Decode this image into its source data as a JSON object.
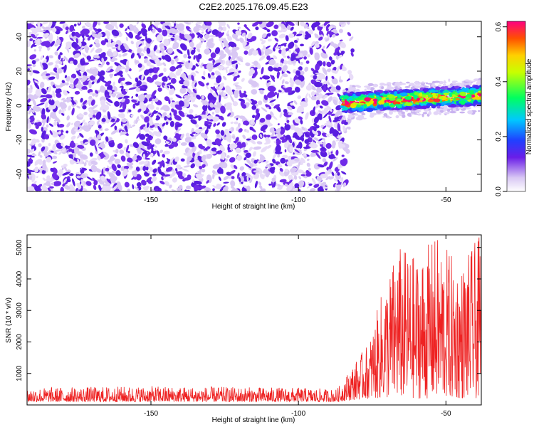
{
  "figure_title": "C2E2.2025.176.09.45.E23",
  "colors": {
    "snr_line": "#ee2222",
    "spec_dense": "#5a1ee0",
    "spec_light": "#d9c8f4"
  },
  "chart_data": [
    {
      "type": "heatmap",
      "title": "C2E2.2025.176.09.45.E23",
      "xlabel": "Height of straight line (km)",
      "ylabel": "Frequency (Hz)",
      "xlim": [
        -192,
        -38
      ],
      "ylim": [
        -50,
        49
      ],
      "xticks": [
        -150,
        -100,
        -50
      ],
      "yticks": [
        -40,
        -20,
        0,
        20,
        40
      ],
      "grid": false,
      "regions": [
        {
          "x": [
            -192,
            -83
          ],
          "y": [
            -50,
            49
          ],
          "description": "broadband low-amplitude noise",
          "amplitude": [
            0.0,
            0.08
          ]
        },
        {
          "x": [
            -85,
            -38
          ],
          "y": [
            -4,
            10
          ],
          "description": "narrow signal band centred near 0–5 Hz",
          "amplitude": [
            0.1,
            0.6
          ]
        }
      ],
      "colorbar": {
        "label": "Normalized spectral amplitude",
        "range": [
          0.0,
          0.62
        ],
        "ticks": [
          0.0,
          0.2,
          0.4,
          0.6
        ],
        "colormap": "rainbow"
      }
    },
    {
      "type": "line",
      "xlabel": "Height of straight line (km)",
      "ylabel": "SNR (10 * v/v)",
      "xlim": [
        -192,
        -38
      ],
      "ylim": [
        0,
        5400
      ],
      "xticks": [
        -150,
        -100,
        -50
      ],
      "yticks": [
        1000,
        2000,
        3000,
        4000,
        5000
      ],
      "grid": false,
      "series": [
        {
          "color": "#ee2222",
          "envelope": [
            {
              "x": -192,
              "low": 100,
              "high": 550
            },
            {
              "x": -150,
              "low": 100,
              "high": 600
            },
            {
              "x": -100,
              "low": 100,
              "high": 550
            },
            {
              "x": -87,
              "low": 100,
              "high": 500
            },
            {
              "x": -82,
              "low": 150,
              "high": 1200
            },
            {
              "x": -76,
              "low": 200,
              "high": 2000
            },
            {
              "x": -72,
              "low": 200,
              "high": 3500
            },
            {
              "x": -66,
              "low": 200,
              "high": 5100
            },
            {
              "x": -60,
              "low": 200,
              "high": 4700
            },
            {
              "x": -53,
              "low": 200,
              "high": 5400
            },
            {
              "x": -45,
              "low": 200,
              "high": 4400
            },
            {
              "x": -40,
              "low": 200,
              "high": 5200
            },
            {
              "x": -38,
              "low": 200,
              "high": 5400
            }
          ]
        }
      ]
    }
  ]
}
